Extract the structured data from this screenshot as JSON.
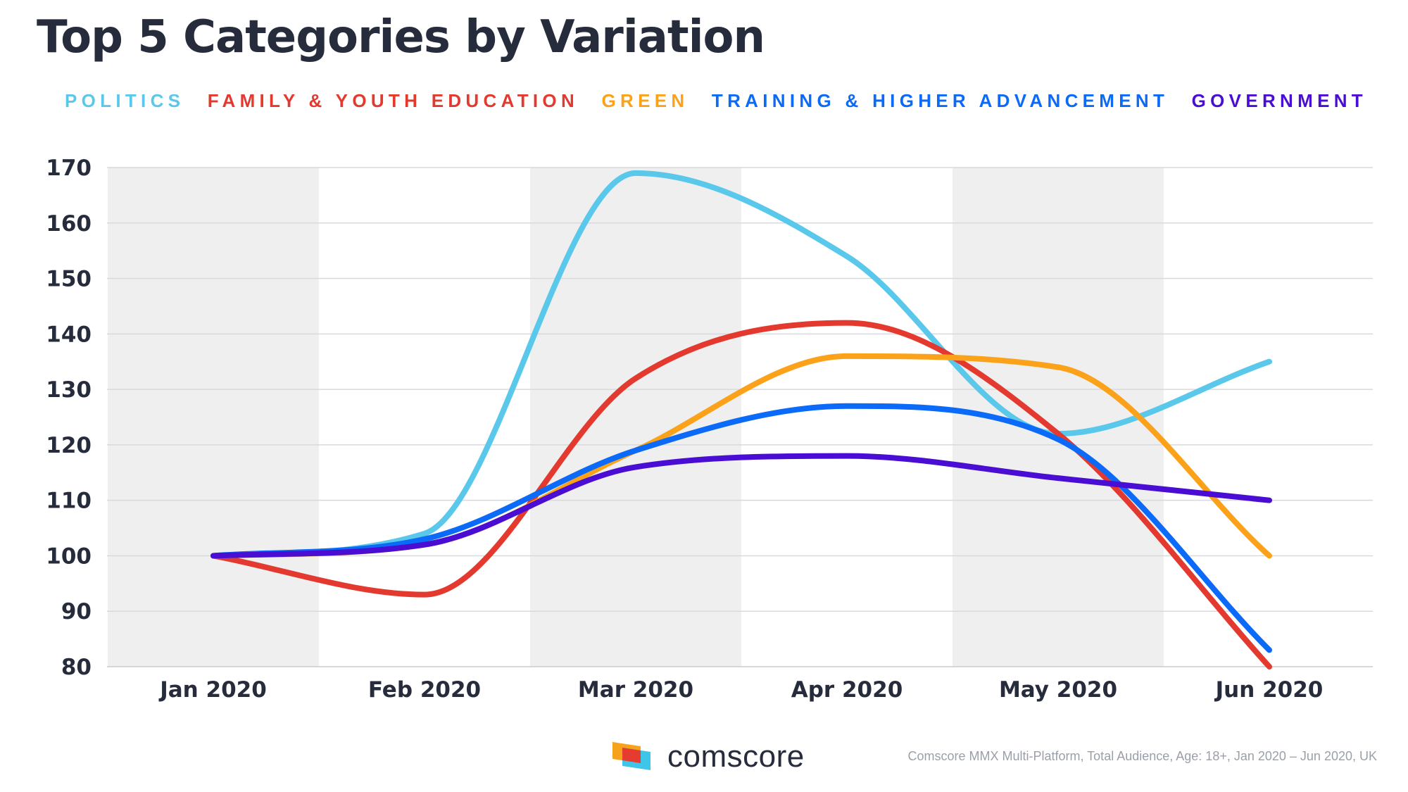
{
  "title": "Top 5 Categories by Variation",
  "source": "Comscore MMX Multi-Platform, Total Audience, Age: 18+, Jan 2020 – Jun 2020, UK",
  "logo_text": "comscore",
  "colors": {
    "title": "#262c3b",
    "band": "#efefef",
    "grid": "#d8d9de",
    "logo_orange": "#f7a21b",
    "logo_red": "#e63c2f",
    "logo_cyan": "#3fc5e8"
  },
  "chart_data": {
    "type": "line",
    "title": "Top 5 Categories by Variation",
    "xlabel": "",
    "ylabel": "",
    "categories": [
      "Jan 2020",
      "Feb 2020",
      "Mar 2020",
      "Apr 2020",
      "May 2020",
      "Jun 2020"
    ],
    "ylim": [
      80,
      170
    ],
    "yticks": [
      "170",
      "160",
      "150",
      "140",
      "130",
      "120",
      "110",
      "100",
      "90",
      "80"
    ],
    "grid": true,
    "legend_position": "top",
    "series": [
      {
        "name": "POLITICS",
        "color": "#59c8ea",
        "values": [
          100,
          104,
          169,
          154,
          122,
          135
        ]
      },
      {
        "name": "FAMILY & YOUTH EDUCATION",
        "color": "#e3392e",
        "values": [
          100,
          93,
          132,
          142,
          122,
          80
        ]
      },
      {
        "name": "GREEN",
        "color": "#fba21a",
        "values": [
          100,
          102,
          119,
          136,
          134,
          100
        ]
      },
      {
        "name": "TRAINING & HIGHER ADVANCEMENT",
        "color": "#0b6af7",
        "values": [
          100,
          103,
          119,
          127,
          121,
          83
        ]
      },
      {
        "name": "GOVERNMENT",
        "color": "#4a0dd3",
        "values": [
          100,
          102,
          116,
          118,
          114,
          110
        ]
      }
    ]
  }
}
